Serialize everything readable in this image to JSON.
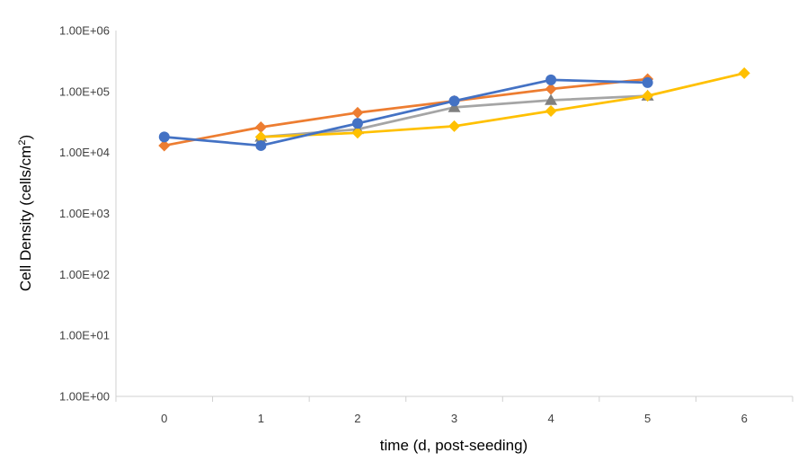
{
  "chart_data": {
    "type": "line",
    "title": "",
    "xlabel": "time (d, post-seeding)",
    "ylabel_main": "Cell Density (cells/cm",
    "ylabel_sup": "2",
    "ylabel_close": ")",
    "yscale": "log",
    "xlim": [
      -0.5,
      6.5
    ],
    "ylim": [
      1,
      1000000
    ],
    "grid": false,
    "legend": "none",
    "x_ticks": [
      "0",
      "1",
      "2",
      "3",
      "4",
      "5",
      "6"
    ],
    "y_ticks": [
      "1.00E+00",
      "1.00E+01",
      "1.00E+02",
      "1.00E+03",
      "1.00E+04",
      "1.00E+05",
      "1.00E+06"
    ],
    "series": [
      {
        "color": "#ED7D31",
        "marker": "diamond",
        "x": [
          0,
          1,
          2,
          3,
          4,
          5
        ],
        "y": [
          13000,
          26000,
          45000,
          70000,
          110000,
          160000
        ]
      },
      {
        "color": "#A5A5A5",
        "marker": "triangle",
        "x": [
          1,
          2,
          3,
          4,
          5
        ],
        "y": [
          18000,
          24000,
          55000,
          72000,
          85000
        ]
      },
      {
        "color": "#FFC000",
        "marker": "diamond",
        "x": [
          1,
          2,
          3,
          4,
          5,
          6
        ],
        "y": [
          18000,
          21000,
          27000,
          48000,
          85000,
          200000
        ]
      },
      {
        "color": "#4472C4",
        "marker": "circle",
        "x": [
          0,
          1,
          2,
          3,
          4,
          5
        ],
        "y": [
          18000,
          13000,
          30000,
          70000,
          155000,
          140000
        ]
      }
    ]
  }
}
